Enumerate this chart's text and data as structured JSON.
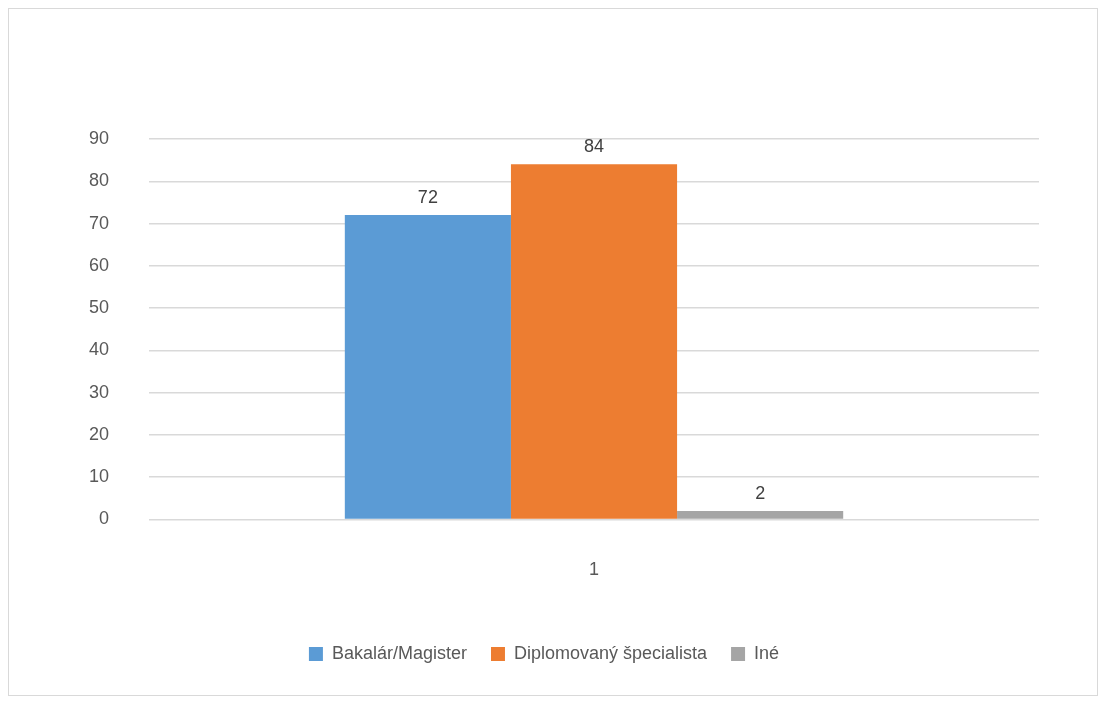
{
  "chart_data": {
    "type": "bar",
    "categories": [
      "1"
    ],
    "series": [
      {
        "name": "Bakalár/Magister",
        "color": "#5b9bd5",
        "values": [
          72
        ]
      },
      {
        "name": "Diplomovaný špecialista",
        "color": "#ed7d31",
        "values": [
          84
        ]
      },
      {
        "name": "Iné",
        "color": "#a5a5a5",
        "values": [
          2
        ]
      }
    ],
    "ylim": [
      0,
      90
    ],
    "yticks": [
      0,
      10,
      20,
      30,
      40,
      50,
      60,
      70,
      80,
      90
    ],
    "grid": "y",
    "legend": "bottom",
    "data_labels": true
  }
}
